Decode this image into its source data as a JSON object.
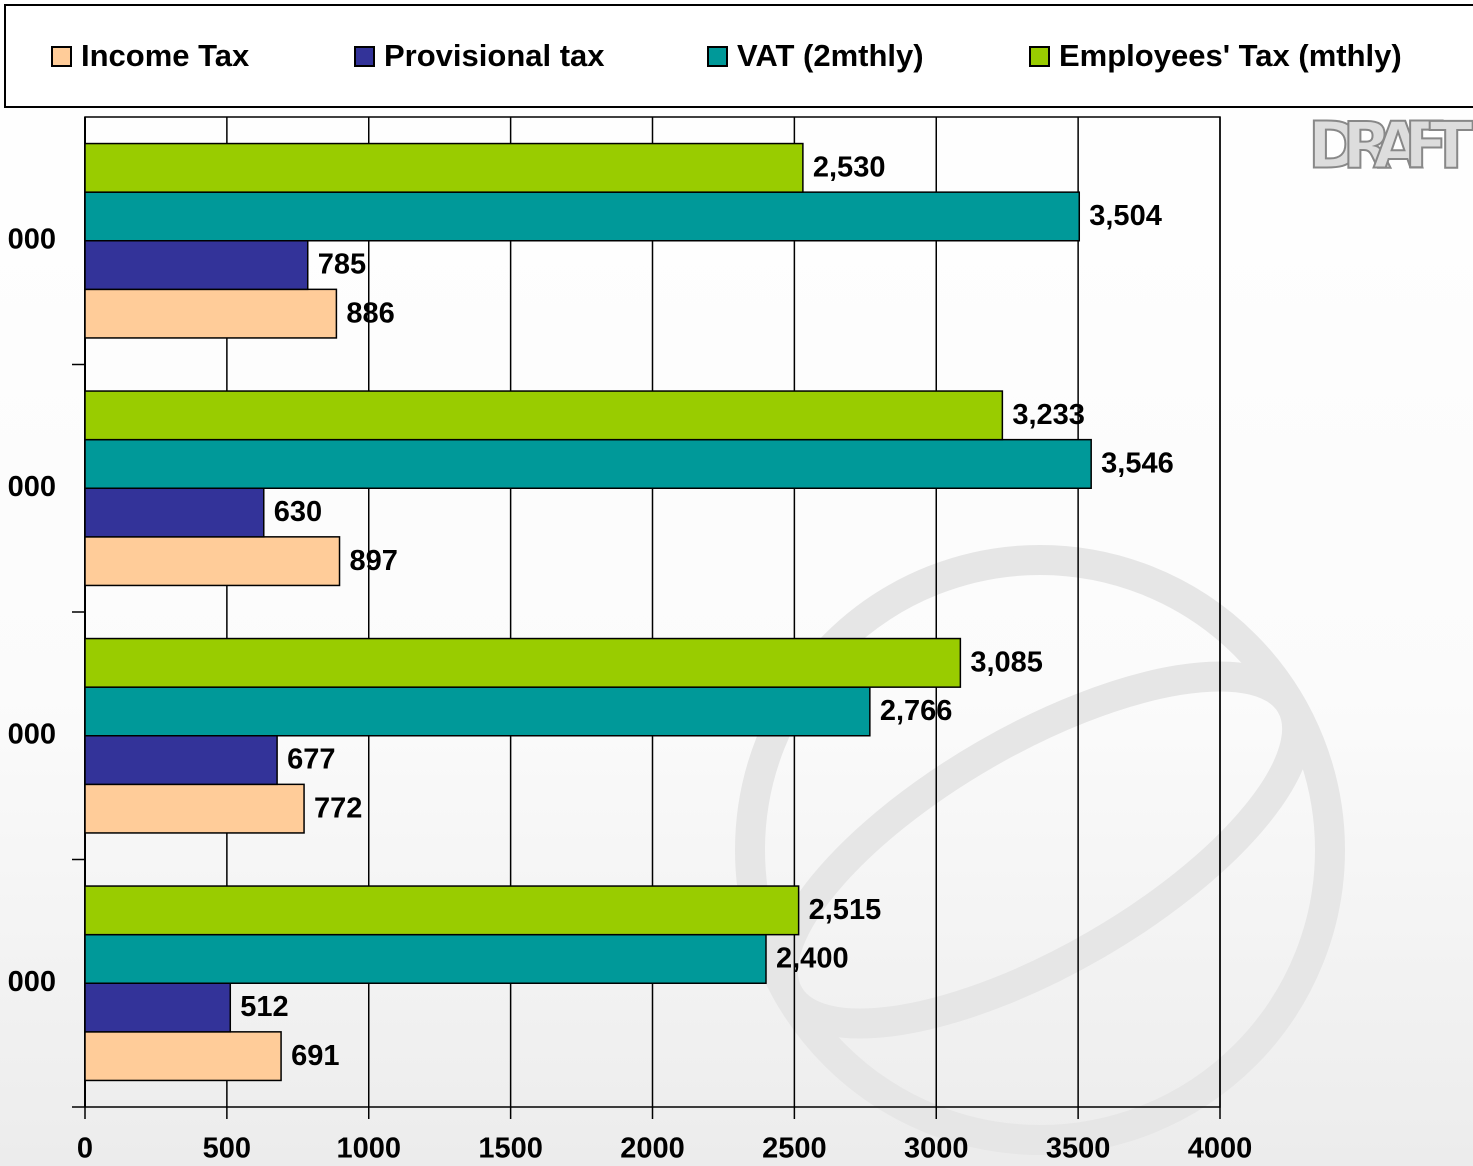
{
  "chart_data": {
    "type": "bar",
    "orientation": "horizontal",
    "watermark": "DRAFT",
    "categories": [
      "000",
      "000",
      "000",
      "000"
    ],
    "series": [
      {
        "name": "Income Tax",
        "color": "#ffcc99",
        "values": [
          886,
          897,
          772,
          691
        ]
      },
      {
        "name": "Provisional tax",
        "color": "#333399",
        "values": [
          785,
          630,
          677,
          512
        ]
      },
      {
        "name": "VAT (2mthly)",
        "color": "#009999",
        "values": [
          3504,
          3546,
          2766,
          2400
        ],
        "value_labels": [
          "3,504",
          "3,546",
          "2,766",
          "2,400"
        ]
      },
      {
        "name": "Employees' Tax (mthly)",
        "color": "#99cc00",
        "values": [
          2530,
          3233,
          3085,
          2515
        ],
        "value_labels": [
          "2,530",
          "3,233",
          "3,085",
          "2,515"
        ]
      }
    ],
    "xlim": [
      0,
      4000
    ],
    "xticks": [
      0,
      500,
      1000,
      1500,
      2000,
      2500,
      3000,
      3500,
      4000
    ],
    "grid": true,
    "legend": "top"
  }
}
